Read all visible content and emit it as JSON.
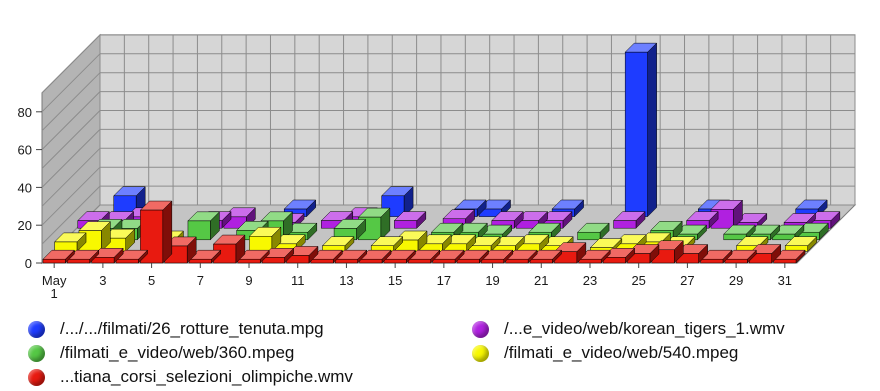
{
  "chart_data": {
    "type": "bar",
    "categories": [
      "May 1",
      "2",
      "3",
      "4",
      "5",
      "6",
      "7",
      "8",
      "9",
      "10",
      "11",
      "12",
      "13",
      "14",
      "15",
      "16",
      "17",
      "18",
      "19",
      "20",
      "21",
      "22",
      "23",
      "24",
      "25",
      "26",
      "27",
      "28",
      "29",
      "30",
      "31"
    ],
    "x_tick_labels": [
      "May 1",
      "3",
      "5",
      "7",
      "9",
      "11",
      "13",
      "15",
      "17",
      "19",
      "21",
      "23",
      "25",
      "27",
      "29",
      "31"
    ],
    "ylim": [
      0,
      90
    ],
    "yticks": [
      "0",
      "20",
      "40",
      "60",
      "80"
    ],
    "grid": true,
    "legend_position": "bottom",
    "series": [
      {
        "name": "/.../.../filmati/26_rotture_tenuta.mpg",
        "color": "#1e3cff",
        "values": [
          0,
          11,
          0,
          0,
          0,
          0,
          0,
          0,
          4,
          0,
          0,
          0,
          11,
          0,
          0,
          4,
          4,
          0,
          0,
          4,
          0,
          0,
          87,
          0,
          0,
          4,
          0,
          0,
          0,
          4,
          0
        ]
      },
      {
        "name": "/...e_video/web/korean_tigers_1.wmv",
        "color": "#b020e0",
        "values": [
          4,
          4,
          6,
          0,
          0,
          4,
          6,
          0,
          3,
          0,
          4,
          6,
          0,
          4,
          0,
          5,
          0,
          4,
          4,
          4,
          0,
          0,
          4,
          0,
          0,
          4,
          10,
          3,
          0,
          3,
          4
        ]
      },
      {
        "name": "/filmati_e_video/web/360.mpeg",
        "color": "#55c845",
        "values": [
          0,
          6,
          6,
          0,
          0,
          10,
          0,
          5,
          10,
          4,
          0,
          6,
          12,
          0,
          0,
          4,
          4,
          3,
          0,
          4,
          0,
          4,
          0,
          0,
          5,
          3,
          0,
          3,
          3,
          3,
          4
        ]
      },
      {
        "name": "/filmati_e_video/web/540.mpeg",
        "color": "#f8f800",
        "values": [
          5,
          11,
          7,
          0,
          6,
          0,
          0,
          0,
          8,
          4,
          0,
          3,
          0,
          3,
          6,
          4,
          4,
          3,
          3,
          4,
          3,
          0,
          2,
          4,
          5,
          3,
          0,
          0,
          3,
          0,
          3
        ]
      },
      {
        "name": "...tiana_corsi_selezioni_olimpiche.wmv",
        "color": "#e81a10",
        "values": [
          2,
          2,
          3,
          2,
          28,
          9,
          2,
          10,
          2,
          3,
          4,
          2,
          2,
          2,
          2,
          2,
          2,
          2,
          2,
          2,
          2,
          6,
          2,
          3,
          5,
          7,
          5,
          2,
          2,
          5,
          2
        ]
      }
    ]
  }
}
